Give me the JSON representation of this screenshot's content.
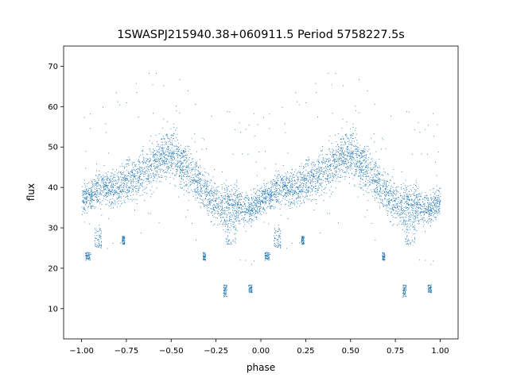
{
  "chart_data": {
    "type": "scatter",
    "title": "1SWASPJ215940.38+060911.5 Period 5758227.5s",
    "xlabel": "phase",
    "ylabel": "flux",
    "xlim": [
      -1.1,
      1.1
    ],
    "ylim": [
      2.5,
      75
    ],
    "xticks": [
      -1.0,
      -0.75,
      -0.5,
      -0.25,
      0.0,
      0.25,
      0.5,
      0.75,
      1.0
    ],
    "xtick_labels": [
      "−1.00",
      "−0.75",
      "−0.50",
      "−0.25",
      "0.00",
      "0.25",
      "0.50",
      "0.75",
      "1.00"
    ],
    "yticks": [
      10,
      20,
      30,
      40,
      50,
      60,
      70
    ],
    "ytick_labels": [
      "10",
      "20",
      "30",
      "40",
      "50",
      "60",
      "70"
    ],
    "grid": false,
    "marker_color": "#1f77b4",
    "series": [
      {
        "profile_x": [
          0.0,
          0.05,
          0.1,
          0.15,
          0.2,
          0.25,
          0.3,
          0.35,
          0.4,
          0.45,
          0.5,
          0.55,
          0.6,
          0.65,
          0.7,
          0.75,
          0.8,
          0.85,
          0.9,
          0.95,
          1.0
        ],
        "profile_y": [
          37,
          38,
          40,
          40,
          40,
          42,
          42,
          44,
          46,
          48,
          48,
          46,
          44,
          41,
          38,
          36,
          36,
          36,
          35,
          35,
          37
        ],
        "profile_spread": [
          4,
          4,
          4.5,
          5,
          5,
          5.5,
          5.5,
          6,
          6,
          6.5,
          6.5,
          6.5,
          6,
          6,
          6,
          5.5,
          5.5,
          5.5,
          5,
          4.5,
          4
        ],
        "clumps": [
          {
            "x": [
              0.02,
              0.05
            ],
            "y": [
              22,
              24
            ]
          },
          {
            "x": [
              0.07,
              0.11
            ],
            "y": [
              25,
              30
            ]
          },
          {
            "x": [
              0.225,
              0.24
            ],
            "y": [
              26,
              28
            ]
          },
          {
            "x": [
              0.675,
              0.69
            ],
            "y": [
              22,
              24
            ]
          },
          {
            "x": [
              0.79,
              0.81
            ],
            "y": [
              13,
              16
            ]
          },
          {
            "x": [
              0.93,
              0.95
            ],
            "y": [
              14,
              16
            ]
          },
          {
            "x": [
              0.8,
              0.86
            ],
            "y": [
              26,
              32
            ]
          }
        ]
      }
    ]
  }
}
